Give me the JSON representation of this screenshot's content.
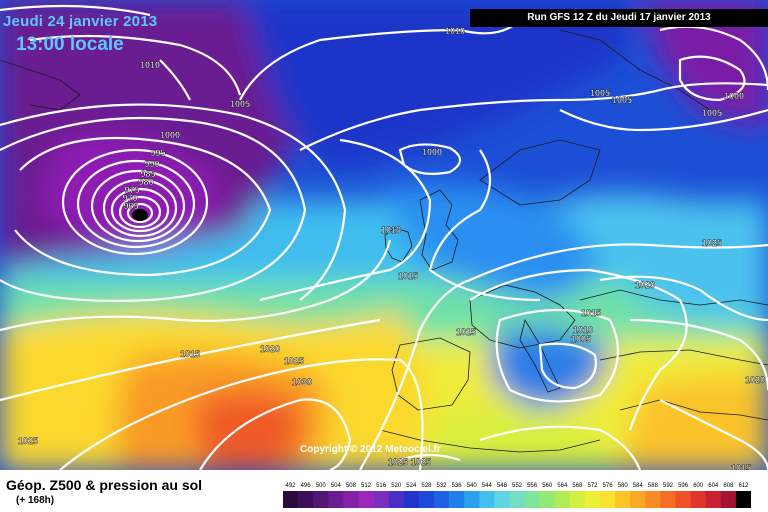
{
  "header": {
    "date": "Jeudi 24 janvier 2013",
    "time": "13:00 locale",
    "run": "Run GFS 12 Z du Jeudi 17 janvier 2013"
  },
  "copyright": "Copyright © 2012 Meteociel.fr",
  "legend": {
    "title": "Géop. Z500 & pression au sol",
    "subtitle": "(+ 168h)",
    "scale_values": [
      "492",
      "496",
      "500",
      "504",
      "508",
      "512",
      "516",
      "520",
      "524",
      "528",
      "532",
      "536",
      "540",
      "544",
      "548",
      "552",
      "556",
      "560",
      "564",
      "568",
      "572",
      "576",
      "580",
      "584",
      "588",
      "592",
      "596",
      "600",
      "604",
      "608",
      "612"
    ],
    "scale_colors": [
      "#2b0a3d",
      "#3d0f5a",
      "#521775",
      "#6a1d91",
      "#8322a8",
      "#9a27b9",
      "#7a2ec0",
      "#4b2fc5",
      "#2233cc",
      "#1d49d8",
      "#1c62e2",
      "#1e80ea",
      "#2ba0ef",
      "#43bef0",
      "#5fd4e3",
      "#72dfc2",
      "#7fe59c",
      "#92e975",
      "#b2ec55",
      "#d3ef3f",
      "#eef036",
      "#fbe22f",
      "#fcc52a",
      "#fba726",
      "#f98a24",
      "#f56d25",
      "#ef5028",
      "#e0352c",
      "#c62231",
      "#a31332",
      "#000000"
    ]
  },
  "isobar_labels": [
    {
      "text": "1010"
    },
    {
      "text": "1010"
    },
    {
      "text": "1005"
    },
    {
      "text": "1005"
    },
    {
      "text": "1005"
    },
    {
      "text": "1005"
    },
    {
      "text": "1000"
    },
    {
      "text": "1000"
    },
    {
      "text": "1000"
    },
    {
      "text": "995"
    },
    {
      "text": "990"
    },
    {
      "text": "985"
    },
    {
      "text": "980"
    },
    {
      "text": "975"
    },
    {
      "text": "970"
    },
    {
      "text": "965"
    },
    {
      "text": "1010"
    },
    {
      "text": "1015"
    },
    {
      "text": "1025"
    },
    {
      "text": "1020"
    },
    {
      "text": "1015"
    },
    {
      "text": "1015"
    },
    {
      "text": "1010"
    },
    {
      "text": "1005"
    },
    {
      "text": "1015"
    },
    {
      "text": "1020"
    },
    {
      "text": "1025"
    },
    {
      "text": "1030"
    },
    {
      "text": "1020"
    },
    {
      "text": "1025"
    },
    {
      "text": "1025"
    },
    {
      "text": "1025"
    },
    {
      "text": "1015"
    }
  ]
}
